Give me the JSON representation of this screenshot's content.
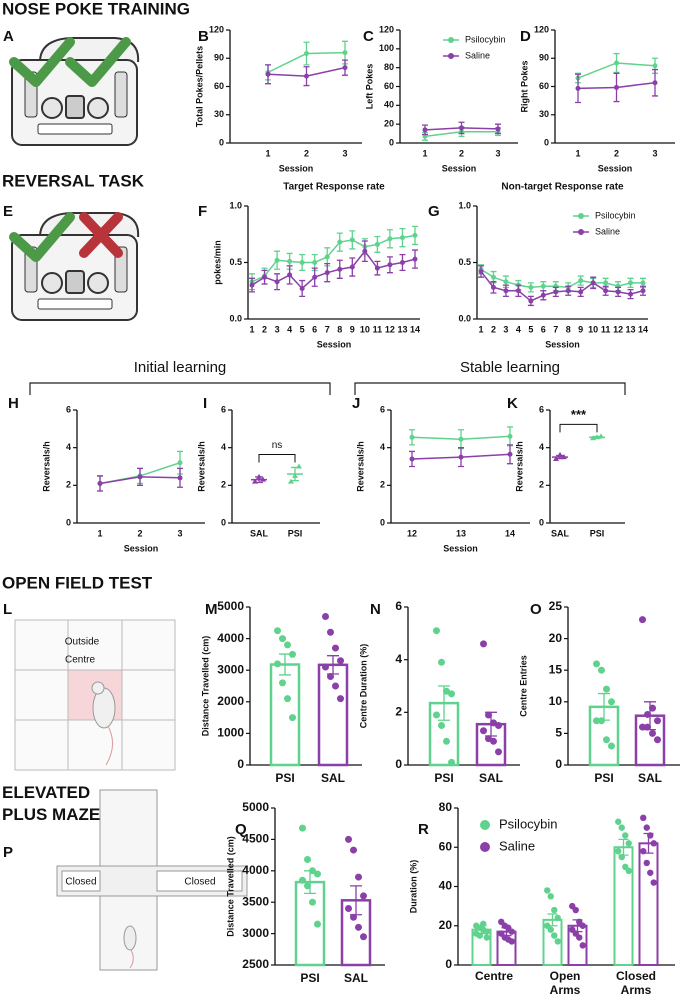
{
  "sections": [
    "NOSE POKE TRAINING",
    "REVERSAL TASK",
    "OPEN FIELD TEST",
    "ELEVATED PLUS MAZE"
  ],
  "panel_labels": [
    "A",
    "B",
    "C",
    "D",
    "E",
    "F",
    "G",
    "H",
    "I",
    "J",
    "K",
    "L",
    "M",
    "N",
    "O",
    "P",
    "Q",
    "R"
  ],
  "group_headers": [
    "Initial learning",
    "Stable learning"
  ],
  "illustrations": {
    "open_field": [
      "Outside",
      "Centre"
    ],
    "plus_maze": [
      "Closed",
      "Closed"
    ]
  },
  "chart_data": [
    {
      "type": "line",
      "ylabel": "Total Pokes/Pellets",
      "xlabel": "Session",
      "categories": [
        "1",
        "2",
        "3"
      ],
      "ylim": [
        0,
        120
      ],
      "yticks": [
        0,
        30,
        60,
        90,
        120
      ],
      "series": [
        {
          "color": "#5fd38d",
          "values": [
            75,
            95,
            96
          ],
          "errors": [
            8,
            12,
            12
          ]
        },
        {
          "color": "#8b3fa8",
          "values": [
            73,
            71,
            80
          ],
          "errors": [
            10,
            10,
            8
          ]
        }
      ]
    },
    {
      "type": "line",
      "ylabel": "Left Pokes",
      "xlabel": "Session",
      "categories": [
        "1",
        "2",
        "3"
      ],
      "ylim": [
        0,
        120
      ],
      "yticks": [
        0,
        20,
        40,
        60,
        80,
        100,
        120
      ],
      "legend": "upper-right",
      "series": [
        {
          "name": "Psilocybin",
          "color": "#5fd38d",
          "values": [
            7,
            12,
            12
          ],
          "errors": [
            4,
            5,
            4
          ]
        },
        {
          "name": "Saline",
          "color": "#8b3fa8",
          "values": [
            14,
            16,
            15
          ],
          "errors": [
            5,
            6,
            5
          ]
        }
      ]
    },
    {
      "type": "line",
      "ylabel": "Right Pokes",
      "xlabel": "Session",
      "categories": [
        "1",
        "2",
        "3"
      ],
      "ylim": [
        0,
        120
      ],
      "yticks": [
        0,
        30,
        60,
        90,
        120
      ],
      "series": [
        {
          "color": "#5fd38d",
          "values": [
            69,
            85,
            82
          ],
          "errors": [
            5,
            10,
            8
          ]
        },
        {
          "color": "#8b3fa8",
          "values": [
            58,
            59,
            64
          ],
          "errors": [
            15,
            15,
            14
          ]
        }
      ]
    },
    {
      "type": "line",
      "title": "Target Response rate",
      "ylabel": "pokes/min",
      "xlabel": "Session",
      "categories": [
        "1",
        "2",
        "3",
        "4",
        "5",
        "6",
        "7",
        "8",
        "9",
        "10",
        "11",
        "12",
        "13",
        "14"
      ],
      "ylim": [
        0,
        1
      ],
      "yticks": [
        {
          "value": 0,
          "label": "0.0"
        },
        0.5,
        {
          "value": 1,
          "label": "1.0"
        }
      ],
      "series": [
        {
          "color": "#5fd38d",
          "values": [
            0.33,
            0.38,
            0.52,
            0.51,
            0.5,
            0.5,
            0.55,
            0.68,
            0.7,
            0.64,
            0.66,
            0.71,
            0.72,
            0.74
          ],
          "errors": [
            0.07,
            0.07,
            0.08,
            0.07,
            0.07,
            0.07,
            0.08,
            0.08,
            0.08,
            0.07,
            0.07,
            0.08,
            0.08,
            0.08
          ]
        },
        {
          "color": "#8b3fa8",
          "values": [
            0.3,
            0.37,
            0.33,
            0.39,
            0.27,
            0.37,
            0.41,
            0.44,
            0.46,
            0.6,
            0.45,
            0.48,
            0.5,
            0.53
          ],
          "errors": [
            0.06,
            0.06,
            0.07,
            0.08,
            0.07,
            0.08,
            0.08,
            0.08,
            0.08,
            0.09,
            0.06,
            0.07,
            0.07,
            0.08
          ]
        }
      ]
    },
    {
      "type": "line",
      "title": "Non-target Response rate",
      "xlabel": "Session",
      "categories": [
        "1",
        "2",
        "3",
        "4",
        "5",
        "6",
        "7",
        "8",
        "9",
        "10",
        "11",
        "12",
        "13",
        "14"
      ],
      "ylim": [
        0,
        1
      ],
      "yticks": [
        {
          "value": 0,
          "label": "0.0"
        },
        0.5,
        {
          "value": 1,
          "label": "1.0"
        }
      ],
      "legend": "upper-right",
      "series": [
        {
          "name": "Psilocybin",
          "color": "#5fd38d",
          "values": [
            0.44,
            0.37,
            0.33,
            0.3,
            0.28,
            0.29,
            0.29,
            0.28,
            0.34,
            0.32,
            0.32,
            0.29,
            0.32,
            0.32
          ],
          "errors": [
            0.04,
            0.05,
            0.05,
            0.04,
            0.04,
            0.04,
            0.04,
            0.04,
            0.04,
            0.04,
            0.04,
            0.04,
            0.04,
            0.04
          ]
        },
        {
          "name": "Saline",
          "color": "#8b3fa8",
          "values": [
            0.42,
            0.28,
            0.25,
            0.25,
            0.16,
            0.21,
            0.24,
            0.25,
            0.24,
            0.32,
            0.25,
            0.24,
            0.22,
            0.25
          ],
          "errors": [
            0.05,
            0.05,
            0.05,
            0.05,
            0.04,
            0.04,
            0.04,
            0.04,
            0.04,
            0.05,
            0.04,
            0.04,
            0.04,
            0.04
          ]
        }
      ]
    },
    {
      "type": "line",
      "ylabel": "Reversals/h",
      "xlabel": "Session",
      "categories": [
        "1",
        "2",
        "3"
      ],
      "ylim": [
        0,
        6
      ],
      "yticks": [
        0,
        2,
        4,
        6
      ],
      "series": [
        {
          "color": "#5fd38d",
          "values": [
            2.1,
            2.5,
            3.2
          ],
          "errors": [
            0.4,
            0.4,
            0.6
          ]
        },
        {
          "color": "#8b3fa8",
          "values": [
            2.1,
            2.45,
            2.4
          ],
          "errors": [
            0.4,
            0.45,
            0.5
          ]
        }
      ]
    },
    {
      "type": "dot",
      "ylabel": "Reversals/h",
      "categories": [
        "SAL",
        "PSI"
      ],
      "ylim": [
        0,
        6
      ],
      "yticks": [
        0,
        2,
        4,
        6
      ],
      "colors": [
        "#8b3fa8",
        "#5fd38d"
      ],
      "values": [
        2.3,
        2.6
      ],
      "errors": [
        0.15,
        0.35
      ],
      "points": [
        [
          2.2,
          2.45,
          2.3
        ],
        [
          2.2,
          2.5,
          3.0
        ]
      ],
      "annotation": "ns"
    },
    {
      "type": "line",
      "ylabel": "Reversals/h",
      "xlabel": "Session",
      "categories": [
        "12",
        "13",
        "14"
      ],
      "ylim": [
        0,
        6
      ],
      "yticks": [
        0,
        2,
        4,
        6
      ],
      "series": [
        {
          "color": "#5fd38d",
          "values": [
            4.55,
            4.45,
            4.6
          ],
          "errors": [
            0.4,
            0.5,
            0.5
          ]
        },
        {
          "color": "#8b3fa8",
          "values": [
            3.4,
            3.5,
            3.65
          ],
          "errors": [
            0.4,
            0.5,
            0.5
          ]
        }
      ]
    },
    {
      "type": "dot",
      "ylabel": "Reversals/h",
      "categories": [
        "SAL",
        "PSI"
      ],
      "ylim": [
        0,
        6
      ],
      "yticks": [
        0,
        2,
        4,
        6
      ],
      "colors": [
        "#8b3fa8",
        "#5fd38d"
      ],
      "values": [
        3.5,
        4.55
      ],
      "errors": [
        0.08,
        0.04
      ],
      "points": [
        [
          3.4,
          3.62,
          3.5
        ],
        [
          4.5,
          4.55,
          4.6
        ]
      ],
      "annotation": "***"
    },
    {
      "type": "bar",
      "ylabel": "Distance Travelled (cm)",
      "categories": [
        "PSI",
        "SAL"
      ],
      "ylim": [
        0,
        5000
      ],
      "yticks": [
        0,
        1000,
        2000,
        3000,
        4000,
        5000
      ],
      "colors": [
        "#5fd38d",
        "#8b3fa8"
      ],
      "values": [
        3180,
        3170
      ],
      "errors": [
        330,
        290
      ],
      "points": [
        [
          4250,
          4000,
          3800,
          3500,
          3200,
          2600,
          2100,
          1500
        ],
        [
          4700,
          4200,
          3700,
          3300,
          3100,
          2800,
          2500,
          2100
        ]
      ]
    },
    {
      "type": "bar",
      "ylabel": "Centre Duration (%)",
      "categories": [
        "PSI",
        "SAL"
      ],
      "ylim": [
        0,
        6
      ],
      "yticks": [
        0,
        2,
        4,
        6
      ],
      "colors": [
        "#5fd38d",
        "#8b3fa8"
      ],
      "values": [
        2.35,
        1.55
      ],
      "errors": [
        0.65,
        0.45
      ],
      "points": [
        [
          5.1,
          3.9,
          2.8,
          2.7,
          1.9,
          1.5,
          0.9,
          0.1
        ],
        [
          4.6,
          1.9,
          1.6,
          1.5,
          1.3,
          1.0,
          0.9,
          0.5
        ]
      ]
    },
    {
      "type": "bar",
      "ylabel": "Centre Entries",
      "categories": [
        "PSI",
        "SAL"
      ],
      "ylim": [
        0,
        25
      ],
      "yticks": [
        0,
        5,
        10,
        15,
        20,
        25
      ],
      "colors": [
        "#5fd38d",
        "#8b3fa8"
      ],
      "values": [
        9.2,
        7.8
      ],
      "errors": [
        2.1,
        2.2
      ],
      "points": [
        [
          16,
          15,
          12,
          10,
          7,
          7,
          4,
          3
        ],
        [
          23,
          8,
          9,
          7,
          6,
          6,
          5,
          4
        ]
      ]
    },
    {
      "type": "bar",
      "ylabel": "Distance Travelled (cm)",
      "categories": [
        "PSI",
        "SAL"
      ],
      "ylim": [
        2500,
        5000
      ],
      "yticks": [
        2500,
        3000,
        3500,
        4000,
        4500,
        5000
      ],
      "colors": [
        "#5fd38d",
        "#8b3fa8"
      ],
      "values": [
        3820,
        3530
      ],
      "errors": [
        180,
        230
      ],
      "points": [
        [
          4680,
          4180,
          4000,
          3950,
          3850,
          3760,
          3500,
          3150
        ],
        [
          4500,
          4330,
          3900,
          3600,
          3400,
          3260,
          3100,
          2950
        ]
      ]
    },
    {
      "type": "grouped_bar",
      "ylabel": "Duration (%)",
      "categories": [
        "Centre",
        "Open Arms",
        "Closed Arms"
      ],
      "ylim": [
        0,
        80
      ],
      "yticks": [
        0,
        20,
        40,
        60,
        80
      ],
      "legend": "upper-left",
      "series": [
        {
          "name": "Psilocybin",
          "color": "#5fd38d",
          "values": [
            18,
            23,
            60
          ],
          "errors": [
            2,
            3,
            4
          ],
          "points": [
            [
              20,
              19,
              18,
              17,
              16,
              15,
              21,
              14
            ],
            [
              38,
              35,
              28,
              24,
              20,
              18,
              15,
              12
            ],
            [
              73,
              70,
              66,
              62,
              58,
              55,
              50,
              48
            ]
          ]
        },
        {
          "name": "Saline",
          "color": "#8b3fa8",
          "values": [
            17,
            20,
            62
          ],
          "errors": [
            2,
            3,
            5
          ],
          "points": [
            [
              22,
              20,
              19,
              17,
              16,
              14,
              13,
              12
            ],
            [
              30,
              28,
              22,
              20,
              18,
              16,
              14,
              10
            ],
            [
              75,
              70,
              66,
              62,
              58,
              52,
              47,
              42
            ]
          ]
        }
      ]
    }
  ]
}
